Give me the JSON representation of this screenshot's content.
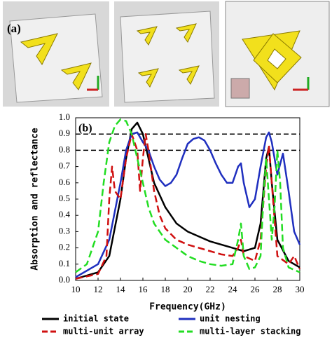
{
  "panels": {
    "label": "(a)"
  },
  "chart_data": {
    "type": "line",
    "panel_label": "(b)",
    "xlabel": "Frequency(GHz)",
    "ylabel": "Absorption and reflectance",
    "xlim": [
      10,
      30
    ],
    "xticks": [
      10,
      12,
      14,
      16,
      18,
      20,
      22,
      24,
      26,
      28,
      30
    ],
    "ylim": [
      0,
      1
    ],
    "yticks": [
      {
        "value": 0,
        "label": "0.0"
      },
      0.1,
      0.2,
      0.3,
      0.4,
      0.5,
      0.6,
      0.7,
      0.8,
      0.9,
      {
        "value": 1,
        "label": "1.0"
      }
    ],
    "hlines": [
      0.9,
      0.8
    ],
    "series": [
      {
        "name": "initial state",
        "color": "#000000",
        "dashed": false,
        "x": [
          10,
          12,
          13,
          14,
          14.5,
          15,
          15.5,
          16,
          16.5,
          17,
          18,
          19,
          20,
          21,
          22,
          23,
          24,
          25,
          26,
          26.5,
          27,
          27.25,
          27.5,
          28,
          29,
          30
        ],
        "values": [
          0.01,
          0.05,
          0.15,
          0.5,
          0.75,
          0.93,
          0.97,
          0.9,
          0.75,
          0.6,
          0.45,
          0.35,
          0.3,
          0.27,
          0.24,
          0.22,
          0.2,
          0.18,
          0.2,
          0.35,
          0.75,
          0.82,
          0.6,
          0.25,
          0.12,
          0.08
        ]
      },
      {
        "name": "unit nesting",
        "color": "#1f2fbf",
        "dashed": false,
        "x": [
          10,
          12,
          13,
          14,
          14.5,
          15,
          15.5,
          16,
          16.5,
          17,
          17.5,
          18,
          18.5,
          19,
          19.5,
          20,
          20.5,
          21,
          21.5,
          22,
          22.5,
          23,
          23.5,
          24,
          24.5,
          24.75,
          25,
          25.5,
          26,
          26.5,
          27,
          27.25,
          27.5,
          28,
          28.5,
          29,
          29.5,
          30
        ],
        "values": [
          0.02,
          0.1,
          0.25,
          0.6,
          0.8,
          0.9,
          0.91,
          0.85,
          0.8,
          0.7,
          0.62,
          0.58,
          0.6,
          0.65,
          0.75,
          0.84,
          0.87,
          0.88,
          0.86,
          0.8,
          0.72,
          0.65,
          0.6,
          0.6,
          0.7,
          0.72,
          0.6,
          0.45,
          0.5,
          0.7,
          0.88,
          0.91,
          0.85,
          0.65,
          0.78,
          0.55,
          0.3,
          0.22
        ]
      },
      {
        "name": "multi-unit array",
        "color": "#d01010",
        "dashed": true,
        "x": [
          10,
          12,
          12.75,
          13,
          13.25,
          13.5,
          14,
          14.5,
          15,
          15.5,
          15.75,
          16,
          16.25,
          16.5,
          17,
          17.5,
          18,
          19,
          20,
          21,
          22,
          23,
          24,
          24.5,
          24.75,
          25,
          26,
          26.5,
          27,
          27.25,
          27.5,
          28,
          29,
          29.5,
          30
        ],
        "values": [
          0.01,
          0.04,
          0.15,
          0.5,
          0.7,
          0.55,
          0.5,
          0.75,
          0.9,
          0.8,
          0.55,
          0.75,
          0.9,
          0.8,
          0.55,
          0.4,
          0.32,
          0.25,
          0.22,
          0.2,
          0.18,
          0.16,
          0.15,
          0.2,
          0.25,
          0.15,
          0.12,
          0.25,
          0.7,
          0.83,
          0.6,
          0.15,
          0.1,
          0.15,
          0.07
        ]
      },
      {
        "name": "multi-layer stacking",
        "color": "#22dd22",
        "dashed": true,
        "x": [
          10,
          11,
          12,
          12.5,
          13,
          13.5,
          14,
          14.5,
          15,
          15.5,
          16,
          16.5,
          17,
          18,
          19,
          20,
          21,
          22,
          23,
          24,
          24.5,
          24.75,
          25,
          25.5,
          26,
          26.5,
          26.75,
          27,
          27.25,
          27.5,
          27.75,
          28,
          28.25,
          28.5,
          29,
          30
        ],
        "values": [
          0.05,
          0.1,
          0.3,
          0.6,
          0.85,
          0.95,
          0.99,
          0.98,
          0.9,
          0.75,
          0.6,
          0.45,
          0.35,
          0.25,
          0.2,
          0.15,
          0.12,
          0.1,
          0.09,
          0.1,
          0.25,
          0.35,
          0.15,
          0.07,
          0.08,
          0.15,
          0.5,
          0.75,
          0.5,
          0.25,
          0.45,
          0.8,
          0.6,
          0.2,
          0.08,
          0.05
        ]
      }
    ]
  }
}
